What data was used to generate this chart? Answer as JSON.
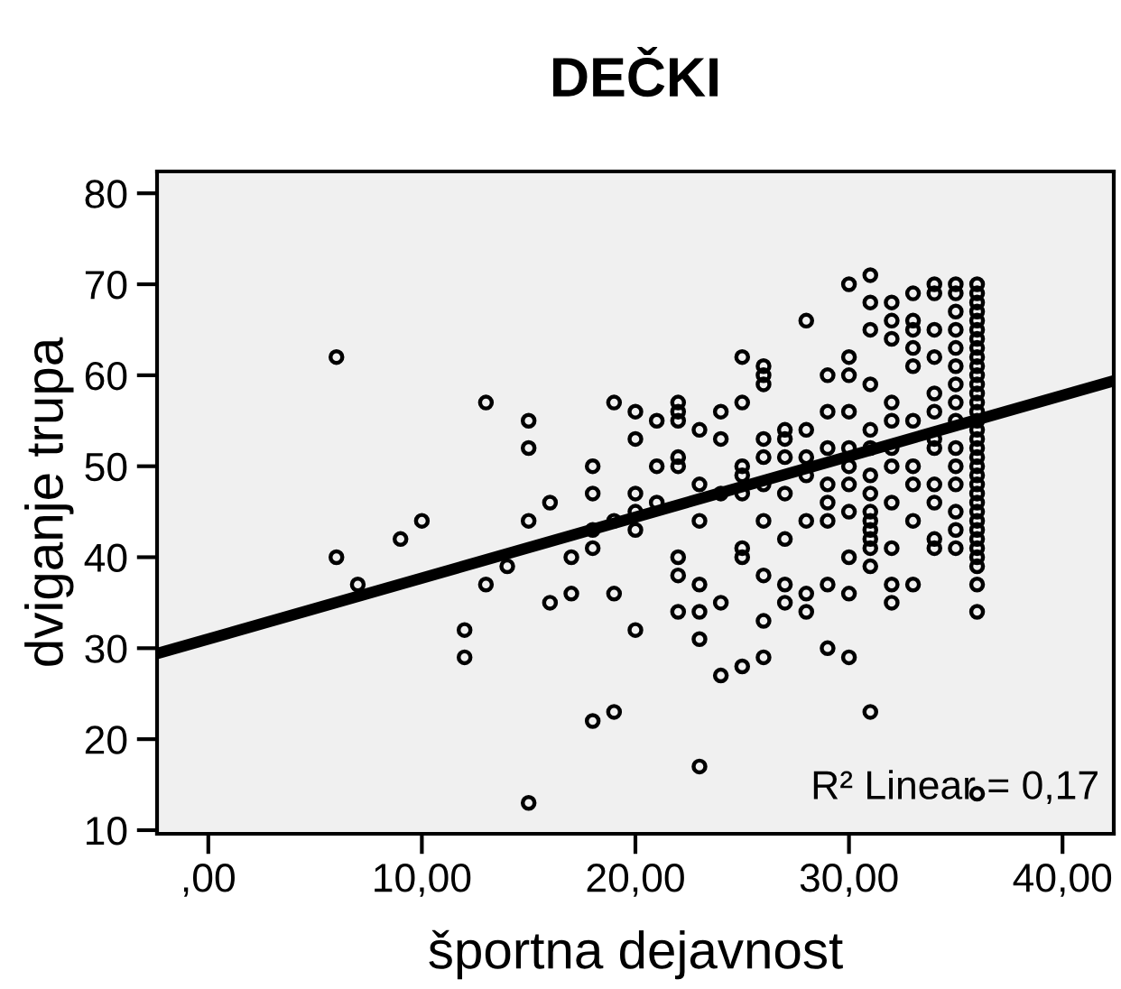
{
  "chart_data": {
    "type": "scatter",
    "title": "DEČKI",
    "xlabel": "športna dejavnost",
    "ylabel": "dviganje trupa",
    "xlim": [
      -2.4,
      42.4
    ],
    "ylim": [
      9.6,
      82.4
    ],
    "xticks": [
      {
        "value": 0,
        "label": ",00"
      },
      {
        "value": 10,
        "label": "10,00"
      },
      {
        "value": 20,
        "label": "20,00"
      },
      {
        "value": 30,
        "label": "30,00"
      },
      {
        "value": 40,
        "label": "40,00"
      }
    ],
    "yticks": [
      10,
      20,
      30,
      40,
      50,
      60,
      70,
      80
    ],
    "grid": false,
    "legend": false,
    "marker": "circle",
    "annotations": [
      "R² Linear = 0,17"
    ],
    "series": [
      {
        "color": "#000000",
        "x": [
          6,
          6,
          7,
          9,
          10,
          12,
          12,
          13,
          13,
          14,
          15,
          15,
          15,
          15,
          16,
          16,
          17,
          17,
          18,
          18,
          18,
          18,
          18,
          19,
          19,
          19,
          19,
          20,
          20,
          20,
          20,
          20,
          20,
          21,
          21,
          21,
          22,
          22,
          22,
          22,
          22,
          22,
          22,
          22,
          23,
          23,
          23,
          23,
          23,
          23,
          23,
          24,
          24,
          24,
          24,
          24,
          25,
          25,
          25,
          25,
          25,
          25,
          25,
          25,
          26,
          26,
          26,
          26,
          26,
          26,
          26,
          26,
          26,
          26,
          27,
          27,
          27,
          27,
          27,
          27,
          27,
          28,
          28,
          28,
          28,
          28,
          28,
          28,
          29,
          29,
          29,
          29,
          29,
          29,
          29,
          29,
          30,
          30,
          30,
          30,
          30,
          30,
          30,
          30,
          30,
          30,
          30,
          31,
          31,
          31,
          31,
          31,
          31,
          31,
          31,
          31,
          31,
          31,
          31,
          31,
          31,
          31,
          32,
          32,
          32,
          32,
          32,
          32,
          32,
          32,
          32,
          32,
          32,
          33,
          33,
          33,
          33,
          33,
          33,
          33,
          33,
          33,
          33,
          34,
          34,
          34,
          34,
          34,
          34,
          34,
          34,
          34,
          34,
          34,
          34,
          35,
          35,
          35,
          35,
          35,
          35,
          35,
          35,
          35,
          35,
          35,
          35,
          35,
          35,
          35,
          36,
          36,
          36,
          36,
          36,
          36,
          36,
          36,
          36,
          36,
          36,
          36,
          36,
          36,
          36,
          36,
          36,
          36,
          36,
          36,
          36,
          36,
          36,
          36,
          36,
          36,
          36,
          36,
          36,
          36,
          36,
          36,
          36,
          36,
          36
        ],
        "values": [
          62,
          40,
          37,
          42,
          44,
          32,
          29,
          57,
          37,
          39,
          55,
          52,
          44,
          13,
          46,
          35,
          40,
          36,
          50,
          47,
          43,
          41,
          22,
          57,
          44,
          36,
          23,
          56,
          53,
          47,
          45,
          43,
          32,
          55,
          50,
          46,
          57,
          56,
          55,
          51,
          50,
          40,
          38,
          34,
          54,
          48,
          44,
          37,
          34,
          31,
          17,
          53,
          56,
          47,
          35,
          27,
          62,
          57,
          50,
          49,
          47,
          41,
          40,
          28,
          61,
          60,
          59,
          53,
          51,
          48,
          44,
          38,
          33,
          29,
          54,
          53,
          51,
          47,
          42,
          37,
          35,
          66,
          54,
          51,
          49,
          44,
          36,
          34,
          60,
          56,
          52,
          48,
          46,
          44,
          37,
          30,
          70,
          62,
          60,
          56,
          52,
          50,
          48,
          45,
          40,
          36,
          29,
          71,
          68,
          65,
          59,
          54,
          52,
          49,
          47,
          45,
          44,
          43,
          42,
          41,
          39,
          23,
          68,
          66,
          64,
          57,
          55,
          52,
          50,
          46,
          41,
          37,
          35,
          69,
          66,
          65,
          63,
          61,
          55,
          50,
          48,
          44,
          37,
          70,
          69,
          65,
          62,
          58,
          56,
          53,
          52,
          48,
          46,
          42,
          41,
          70,
          69,
          67,
          65,
          63,
          61,
          59,
          57,
          55,
          52,
          50,
          48,
          45,
          43,
          41,
          70,
          69,
          68,
          67,
          66,
          65,
          64,
          63,
          62,
          61,
          60,
          59,
          58,
          57,
          56,
          55,
          54,
          53,
          52,
          51,
          50,
          49,
          48,
          47,
          46,
          45,
          44,
          43,
          42,
          41,
          40,
          39,
          37,
          34,
          14
        ]
      },
      {
        "type": "line",
        "color": "#000000",
        "marker": "none",
        "x": [
          -2.4,
          42.4
        ],
        "values": [
          29.4,
          59.4
        ]
      }
    ]
  }
}
